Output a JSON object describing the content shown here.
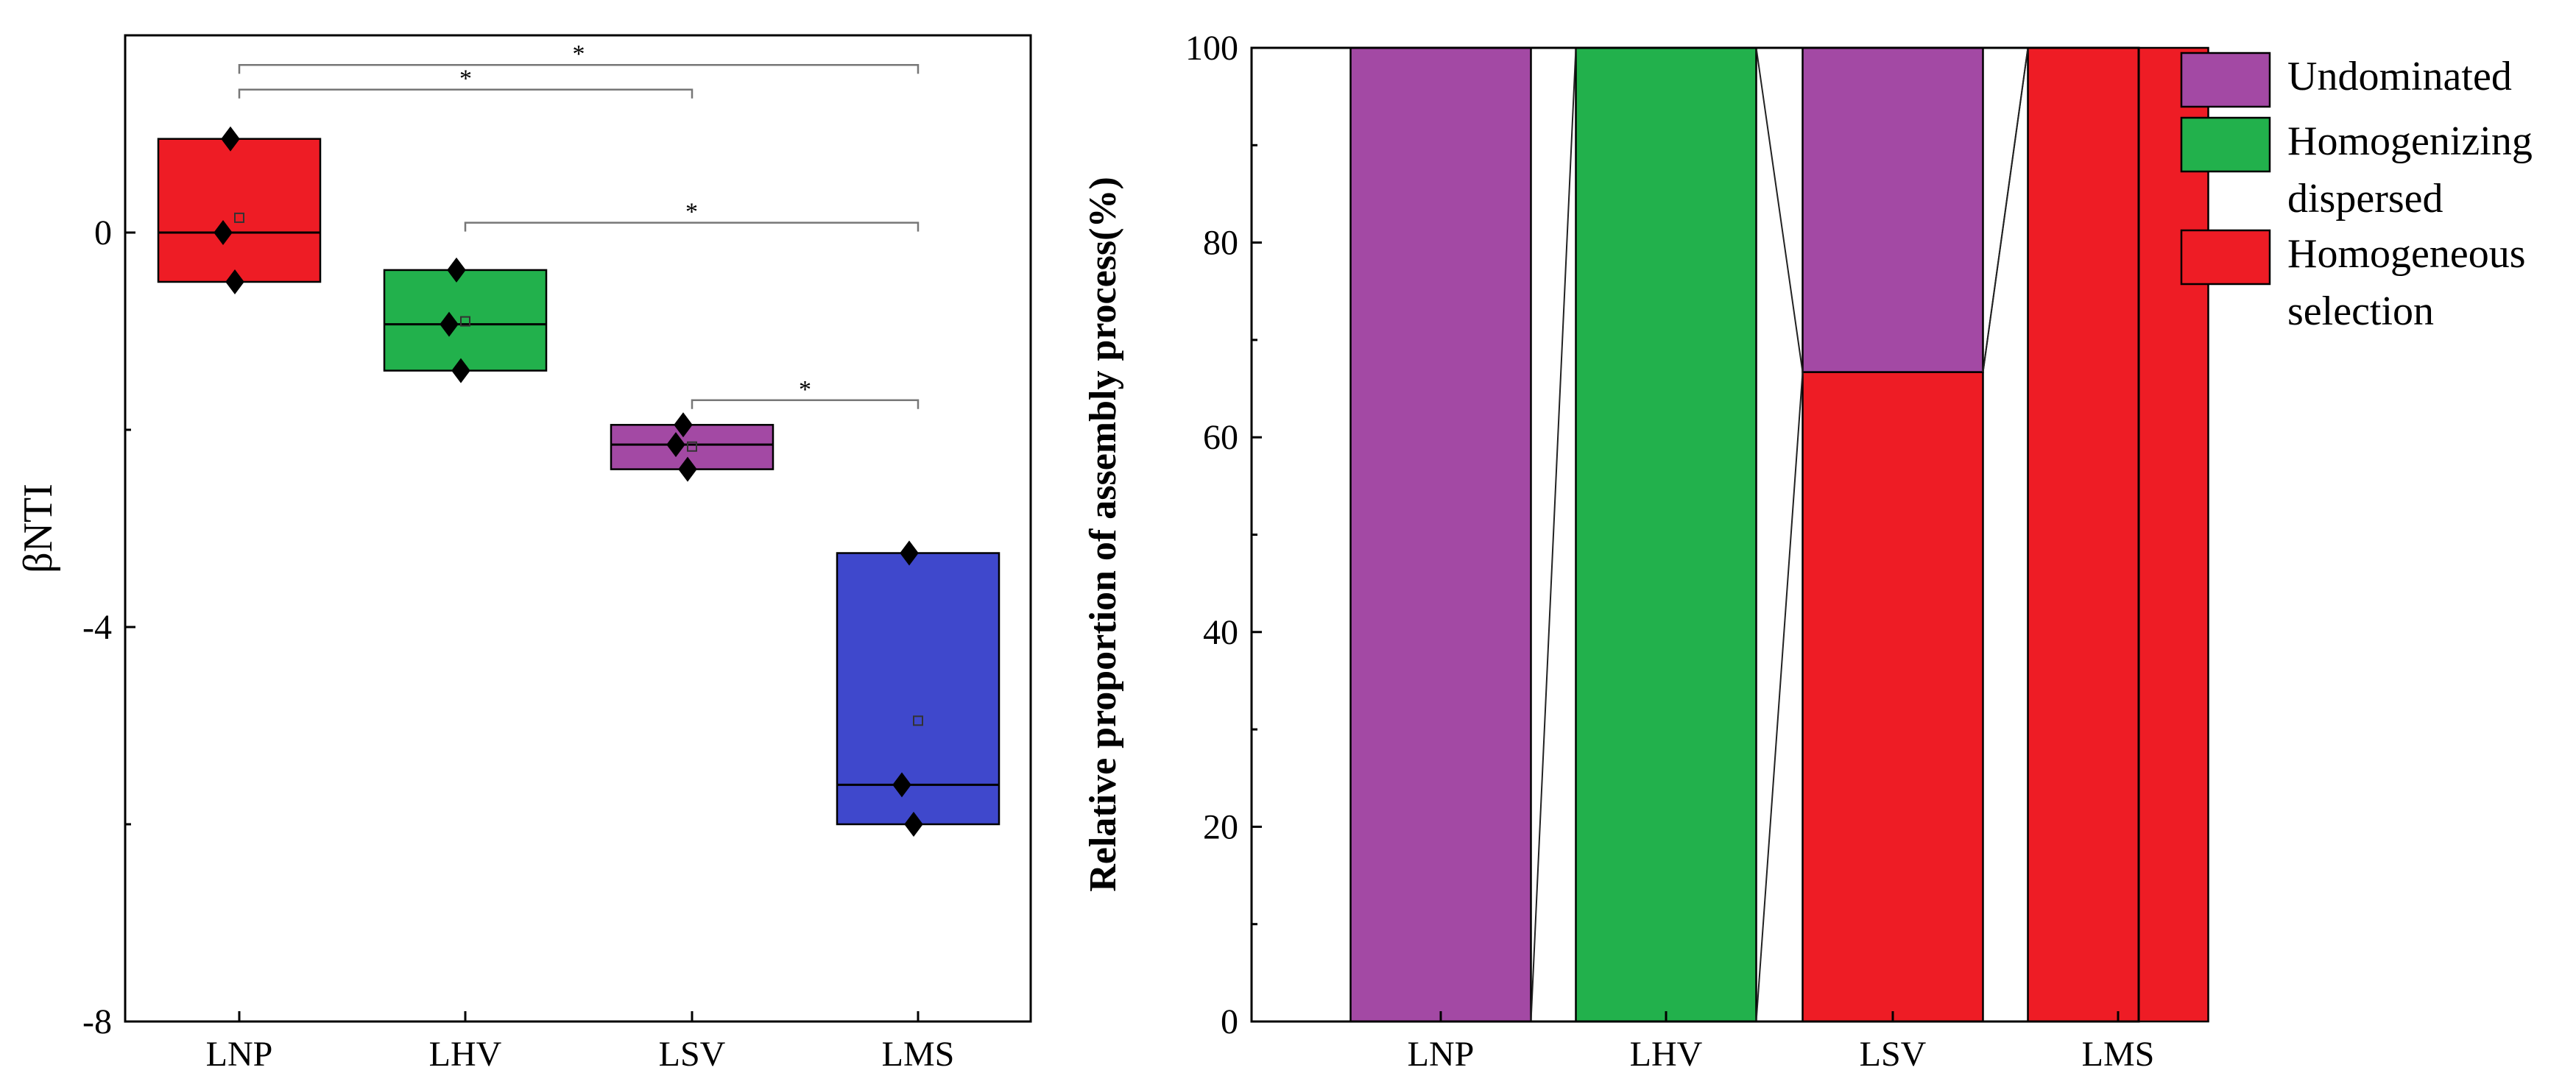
{
  "chart_data": [
    {
      "type": "box",
      "ylabel": "βNTI",
      "ylim": [
        -8,
        2
      ],
      "yticks": [
        0,
        -4,
        -8
      ],
      "categories": [
        "LNP",
        "LHV",
        "LSV",
        "LMS"
      ],
      "colors": [
        "#ee1c25",
        "#22b14c",
        "#a349a4",
        "#3f48cc"
      ],
      "boxes": [
        {
          "category": "LNP",
          "q1": -0.5,
          "median": 0.0,
          "q3": 0.95,
          "mean": 0.15,
          "points": [
            0.95,
            0.0,
            -0.5
          ]
        },
        {
          "category": "LHV",
          "q1": -1.4,
          "median": -0.93,
          "q3": -0.38,
          "mean": -0.9,
          "points": [
            -0.38,
            -0.93,
            -1.4
          ]
        },
        {
          "category": "LSV",
          "q1": -2.4,
          "median": -2.15,
          "q3": -1.95,
          "mean": -2.17,
          "points": [
            -1.95,
            -2.15,
            -2.4
          ]
        },
        {
          "category": "LMS",
          "q1": -6.0,
          "median": -5.6,
          "q3": -3.25,
          "mean": -4.95,
          "points": [
            -3.25,
            -5.6,
            -6.0
          ]
        }
      ],
      "significance": [
        {
          "from": "LNP",
          "to": "LMS",
          "y": 1.7,
          "label": "*"
        },
        {
          "from": "LNP",
          "to": "LSV",
          "y": 1.45,
          "label": "*"
        },
        {
          "from": "LHV",
          "to": "LMS",
          "y": 0.1,
          "label": "*"
        },
        {
          "from": "LSV",
          "to": "LMS",
          "y": -1.7,
          "label": "*"
        }
      ]
    },
    {
      "type": "stacked_bar",
      "ylabel": "Relative proportion of assembly process(%)",
      "ylim": [
        0,
        100
      ],
      "yticks": [
        0,
        20,
        40,
        60,
        80,
        100
      ],
      "categories": [
        "LNP",
        "LHV",
        "LSV",
        "LMS"
      ],
      "series": [
        {
          "name": "Homogeneous selection",
          "color": "#ee1c25",
          "values": [
            0,
            0,
            66.7,
            100
          ]
        },
        {
          "name": "Homogenizing dispersed",
          "color": "#22b14c",
          "values": [
            0,
            100,
            0,
            0
          ]
        },
        {
          "name": "Undominated",
          "color": "#a349a4",
          "values": [
            100,
            0,
            33.3,
            0
          ]
        }
      ],
      "legend": [
        {
          "color": "#a349a4",
          "lines": [
            "Undominated"
          ]
        },
        {
          "color": "#22b14c",
          "lines": [
            "Homogenizing",
            "dispersed"
          ]
        },
        {
          "color": "#ee1c25",
          "lines": [
            "Homogeneous",
            " selection"
          ]
        }
      ]
    }
  ]
}
